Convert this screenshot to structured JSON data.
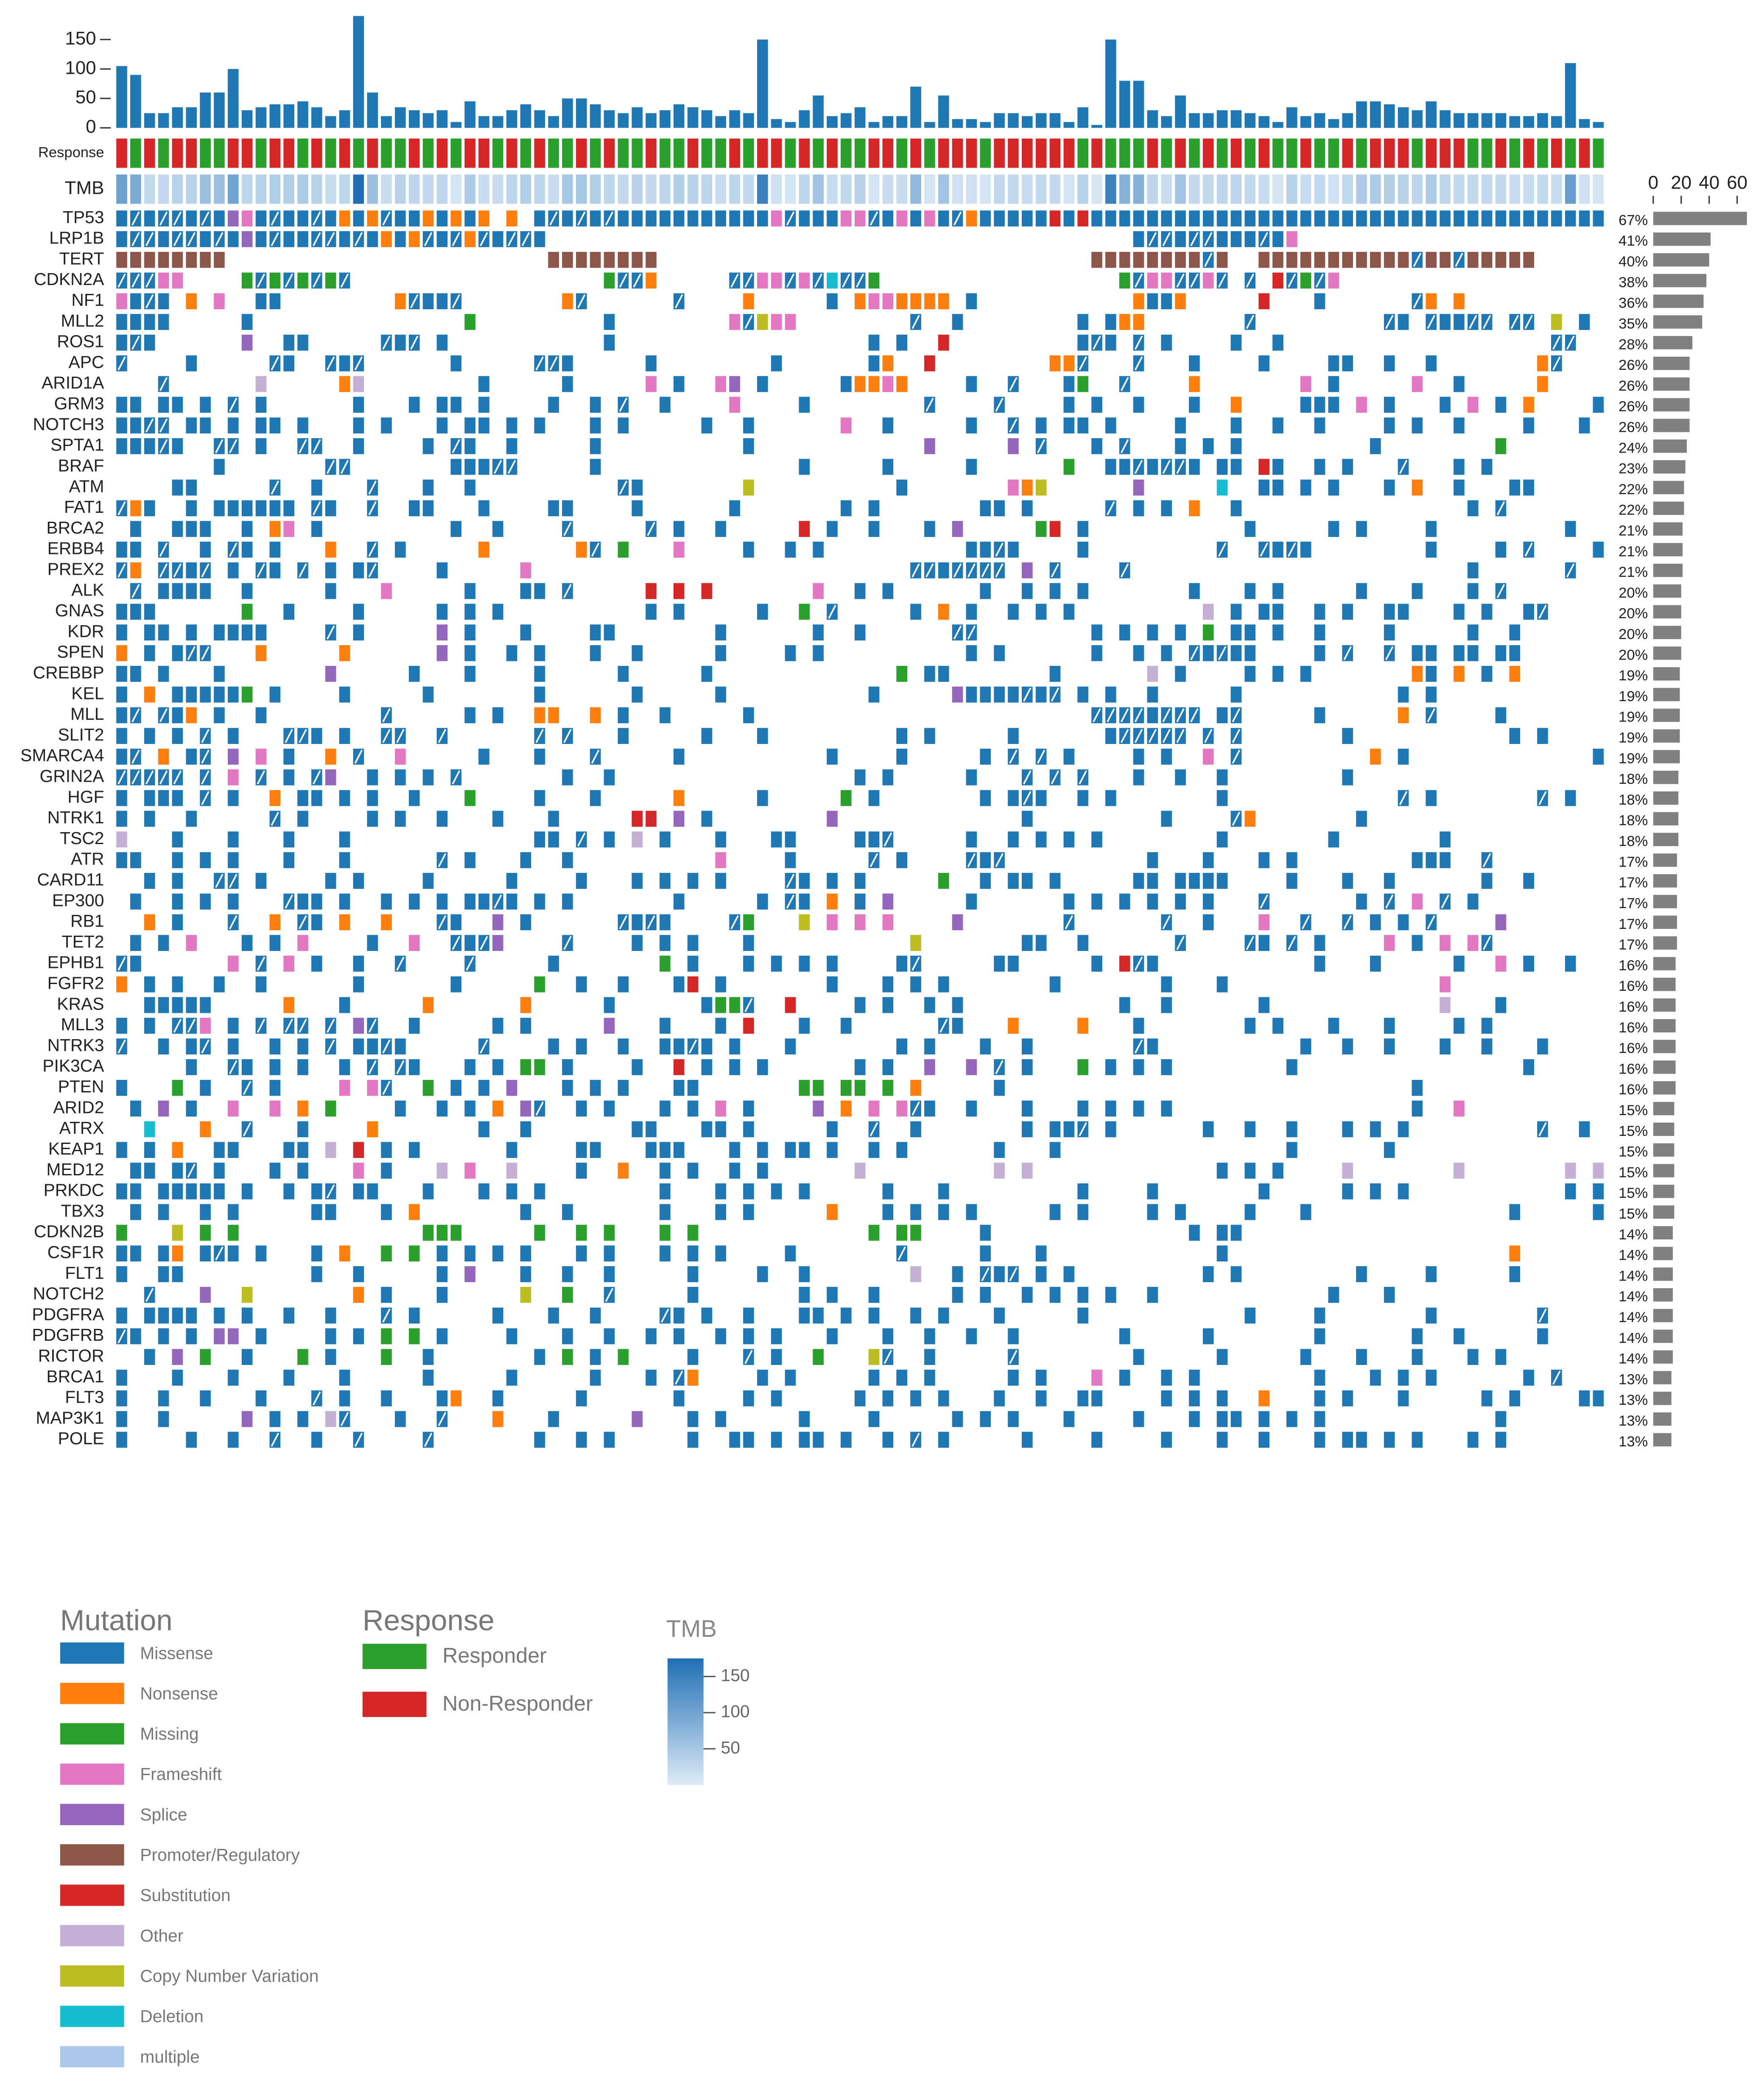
{
  "chart_data": {
    "type": "oncoprint",
    "tmb": {
      "ylim": [
        0,
        190
      ],
      "yticks": [
        0,
        50,
        100,
        150
      ],
      "color": "#1f77b4",
      "values": [
        105,
        90,
        25,
        25,
        35,
        35,
        60,
        60,
        100,
        30,
        35,
        40,
        40,
        45,
        35,
        20,
        30,
        190,
        60,
        20,
        35,
        30,
        25,
        30,
        10,
        45,
        20,
        20,
        30,
        40,
        30,
        20,
        50,
        50,
        40,
        30,
        25,
        35,
        25,
        30,
        40,
        35,
        30,
        20,
        30,
        25,
        150,
        15,
        10,
        30,
        55,
        20,
        25,
        35,
        10,
        20,
        20,
        70,
        10,
        55,
        15,
        15,
        10,
        25,
        25,
        20,
        25,
        25,
        10,
        35,
        5,
        150,
        80,
        80,
        30,
        20,
        55,
        25,
        25,
        30,
        30,
        25,
        20,
        10,
        35,
        20,
        25,
        15,
        25,
        45,
        45,
        40,
        35,
        30,
        45,
        30,
        25,
        25,
        25,
        25,
        20,
        20,
        25,
        20,
        110,
        15,
        10
      ]
    },
    "response_label": "Response",
    "tmb_label": "TMB",
    "response": [
      1,
      0,
      1,
      0,
      1,
      1,
      0,
      0,
      1,
      1,
      0,
      1,
      1,
      0,
      1,
      0,
      1,
      0,
      1,
      0,
      0,
      1,
      0,
      1,
      0,
      1,
      1,
      0,
      1,
      0,
      1,
      0,
      0,
      1,
      0,
      1,
      0,
      0,
      1,
      0,
      0,
      1,
      0,
      0,
      1,
      0,
      1,
      1,
      0,
      1,
      0,
      1,
      0,
      0,
      1,
      1,
      0,
      1,
      0,
      1,
      1,
      1,
      0,
      1,
      1,
      1,
      1,
      1,
      1,
      0,
      1,
      0,
      0,
      0,
      1,
      0,
      1,
      0,
      1,
      0,
      1,
      0,
      1,
      0,
      0,
      1,
      0,
      0,
      1,
      0,
      1,
      1,
      1,
      0,
      1,
      1,
      1,
      0,
      0,
      1,
      0,
      1,
      0,
      1,
      0,
      1,
      0
    ],
    "genes": [
      "TP53",
      "LRP1B",
      "TERT",
      "CDKN2A",
      "NF1",
      "MLL2",
      "ROS1",
      "APC",
      "ARID1A",
      "GRM3",
      "NOTCH3",
      "SPTA1",
      "BRAF",
      "ATM",
      "FAT1",
      "BRCA2",
      "ERBB4",
      "PREX2",
      "ALK",
      "GNAS",
      "KDR",
      "SPEN",
      "CREBBP",
      "KEL",
      "MLL",
      "SLIT2",
      "SMARCA4",
      "GRIN2A",
      "HGF",
      "NTRK1",
      "TSC2",
      "ATR",
      "CARD11",
      "EP300",
      "RB1",
      "TET2",
      "EPHB1",
      "FGFR2",
      "KRAS",
      "MLL3",
      "NTRK3",
      "PIK3CA",
      "PTEN",
      "ARID2",
      "ATRX",
      "KEAP1",
      "MED12",
      "PRKDC",
      "TBX3",
      "CDKN2B",
      "CSF1R",
      "FLT1",
      "NOTCH2",
      "PDGFRA",
      "PDGFRB",
      "RICTOR",
      "BRCA1",
      "FLT3",
      "MAP3K1",
      "POLE"
    ],
    "matrix": [
      "0a0aa0a0430a00a0101a0010101-1-0a0a0a000000000003a00033a03030a1000006060000000000000000000000000000000000000000",
      "0aa0aa0a040a00aa0a0101a0a1a0aa0------------------------------------------0aa0aa000a03----------------------",
      "55555555-----------------------55555555-------------------------------55555555a5--55555555555a55a55555------",
      "aaa33----2a2a2a2a------------------2aa1-----aa33a3a9aa2-----------------2a33aa3a-a-6a2a3---------------------",
      "30a0-1-3--00--------1a00a-------1a------a----1-----0-1331111-0-----------1001-----6---0------a1-1------------",
      "0000-----0---------------2---------0--------3a833--------a--0--------0-011-------a---------a0-a00aa-aa-8-0----",
      "0a0------4--00-----a0a-0-----------0------------------0-0--6---------0a0-a-0----0--0-------------------aa----",
      "a----0-----a0--a0a------0-----aa0-----0--------0------01--6--------11a---a---0----0----00--0--0-------1a-----",
      "---a------7-----17--------0-----0-----3-0--34-0-----01131----0--a---02--a----1-------3-0-----3--0-----1------",
      "00-00-0-a-0------0---0-00-0----0--0-a--0----3----0--------a----a----0-0--0---0--1----000-3-0---0-3-0-1----0--",
      "00aa-00-0-00-0---0-0---0-00-0-0---0-0-----0--0------3--0-----0--a-0-00-0----0---0--0--0----0-0--0----0---0-0-",
      "000a0--aa-0--aa--0----0-a0--0-----0----------0------------4-----4-a---0-a---0-0-0---------0--------2--------",
      "-------0-------aa-------000aa-----0--------------0-----0-----0------2--00a0aa0-00-60--0-0---a---0-0----------",
      "----00-----a--0---a---0--0----------a0-------8----------0-------318------4-----9--00-0-0---0-1--0---00-------",
      "a10--0-000000-a0--a--00---0----00----0------0-------0-0-------00-0-----a-0-0-1--0----------------0-a-------",
      "-0--000--0-13-0---------0--0----a-----a-0--0-----6-0--0---0-4-----26-0-----------0-----0-0----0---------0---",
      "00-a--0-a0-0---1--a-0-----1------1a-2---3----0--0-0----------00a0----0---------a--a0a0--------0----0-a----0-",
      "a1-aa0a-0-a0-a-0-0a----0-----3---------------------------aa0aaaa-4-a----a------------------------0------a--",
      "-a-0000--0-----0---3-----0---00-a-----6-6-6-------3--0-0------0--0-0-0-------0---0-0-----0---0---0-a---------",
      "000------2--0----0-----0-0-0----------0-0-----0--2-a-----0-1-0--0-0-0---------7-0-00--0-0--00---0-0--0a----",
      "0-00-0-0000----a-0-----4-0---0----00-------0------0--0------aa--------0-0-0-0-2-00-0--0----0-----0--0--------",
      "1-0-0aa---1-----1------4-0--0-0---0--0-----0----0-0----------0-0------0--0-0-a0a00----0-a--a-00-00-00---------",
      "00-0---0-------4-----0---0----0-----0-----0-------------2-00-------0------7-0----0-0-0-------10-1-0-1---------",
      "0-1-000002-0----0-----0-------0------0-----0----------0-----40000a0a-0-0--0-----0-----------0-0---------------",
      "0a-a01-0--0--------a-----0-0--11--1-0--0-----0------------------------aaaa0aaa-0a-----0-----1-a----0---------",
      "0-0-0-a-0---aa0-0--aa--a------a-a---0-----0---0---------0-0-----0------0aaaaa-a-a-------0-----------0-0------",
      "0a-1-0a-4-3-0--1-a--3-----0---0---a-----0----------0----0-----0-a-a-0----0-0--3-a---------1-0-------------0-",
      "aaaaa-a-3-a-0-a4--0-0-0-a-------0--0-----------------0-0-----0---a-a-a---0--0--0--------0-------------------",
      "0-000-a-0--1-00-0-0--0---2----0---0-----1-----0-----2-0-------0-0a0--0-0-------0------------a-0-------a-0---",
      "0-0--0-----a-0----0-0--0---0---0-----66-4-0--------4-------------0---------0----a1-------0-------------------",
      "7---0---0---0---0-------------00-a-0-7-0---0---00----00a-----0--0-0-0-0--------0-------0-------0-------------",
      "00--0-0-0---0---0------a-0---0--0----------3----0-----a-0----a0a----------0---0---0-0--------000--a---------a-",
      "--0-0--aa-0----0-0----0-----0----0---0-0-0-0----a0-0-0-----2--0-00-0-----00-0000----0---0--0------0--0-------",
      "-0--0-0-0---a00-0--0-0-0-00a0-0-0-------0-----0-a0-1-0-4-----0------0-0-0-0-0-0---a------0-a-3-a-0----------",
      "--1-0---a--1-a0-1--1---a0--4-0------a0a0----a2---8-3-3-3----4-------a------a--0---3--a--a-0-0-a----4--------",
      "-0-0-3---0-0-3----0--3--a0a4----a----0-0-0---0-----------8-------00--0------a----a0-a-0----3-0-3-3a--------",
      "a0------3-a-3-0--0--a----a-----0-------2-0---0-0-0-0----0a-----00-----0-6a0-----------0---0-----0--3-0--0--",
      "1-0-0--0--0------0------0-----2--0--0---06-0-------0---0-0-0-------0-------0---0---------------3-------------",
      "--00000-----1---0-----1------1-----0------022a--6----0-0--0-0-----------0--0------0------------7---0--------",
      "0-0-aa3-0-a-aa-a-4a--0-----0-0-----4---0---0-6---0--0------a0---1----1---0-------0-0---0---0----0-0---------",
      "a--0-0a-0--0-0-a-00a0-----a----0-0--0--00a0-0---0-------0-0---0--0-------a0----------0--0--0---0--0---0---",
      "-----0--a0-0-0--0-a-a0---0-0-22-0----0--6-0-0-0------0-0--4--4-a-0---2-0-0-0--------0----------------0------",
      "0---2-0--a-0----3-3a--2-0-0-4---0-0-0---00-------22-22-2-1-----0-----------------------------0--------------",
      "-0-4-0--3--3-1-2----0--0-0-1-4a--0-0---0-0-3-0----4-1-3-3a0--0---0---0-0-0-0-----------------0--3-----------",
      "--9---1--a---0----1-------0--0-------00---00-0-----0--a--0-------0-00a-0------0--0--0---0-0-0---------a--0-",
      "0-0-1--00---00-7-6-0-0------0----00---000---0-0-00-0--0-0------0---0----------------0------0----------------",
      "-00-0a-0---0-0---3-0---7-3--7----0--1--0-0--0-0------7---------7-7-------------0-0-0----7-------7-------7-7",
      "00-00000-0--0-0a-00---0---0-0-0--------0---0-0-0-0-----0---0---------0----0-------0-----0-0-0-----------0-0-",
      "-0-0--0-0-----00---0-1-------0--0------0---0-0-----1---0-0-0-0-----0-0----0-0----0---0--------------0-----0",
      "2---8-2-2-------------222-----2--2-2---2-2------------2-22----0--------------0-00--------------------------",
      "00-01-0a0-0---0-1--2-2-0-0-0-0---0-0---0-0-0----0-------a-----0---0------------0--------------------1------",
      "0--00---------0--0-----0-4---0--0--0-----0----0--0-------7--0-a0a-0-0---------0-0--------0----0-----0------",
      "--a---4--8-------1-0---0-----8--2--a-----0-------0-0--0-----0-0--0-0-0-0--0------------0---0--------------",
      "0-0000-0-0--0--0---a-0-----0---0--0----a0-0--0---00-0-0--0-0---0-----0-----------0----0-------0-------a-----",
      "a0-0-0-44-0----0-0-2-2-0----0---0--0--0-0--0-0-0---0---0--0--0--0-------0-----0-------0------0--0-----0------",
      "--0-4-2--0---2-0---2--0-------0-2-0-2----0---a-0--2---8a--0-----a--------0-----0-----0---0---0---0-0--------",
      "0---0---0---0---0-----0-----0-----0---0-a1----0-0-----0-0-0-----0-0---3-0--0-0--------0---0-0-0------0-a----",
      "0--0--0---0---a-0--0---01--0-----0------0----0-0-----0-0-0-0---0--0--00----0-0-0--1---0-0---0-----0-0----00",
      "0--0-----4-0-0-7a---0--a---1---0-----4---0-0-----0----0-----0-0-0---0----0---0-00-0-0-0------------0------",
      "0----0--0--a--0--a----a-------0--0-0-----0--00-0-00-0--0-a-0-----0----0----0---0--0---0-00-0-0---0-0--------"
    ],
    "frequency": {
      "xlim": [
        0,
        70
      ],
      "xticks": [
        0,
        20,
        40,
        60
      ],
      "color": "#808080",
      "values": [
        67,
        41,
        40,
        38,
        36,
        35,
        28,
        26,
        26,
        26,
        26,
        24,
        23,
        22,
        22,
        21,
        21,
        21,
        20,
        20,
        20,
        20,
        19,
        19,
        19,
        19,
        19,
        18,
        18,
        18,
        18,
        17,
        17,
        17,
        17,
        17,
        16,
        16,
        16,
        16,
        16,
        16,
        16,
        15,
        15,
        15,
        15,
        15,
        15,
        14,
        14,
        14,
        14,
        14,
        14,
        14,
        13,
        13,
        13,
        13
      ],
      "value_labels": [
        "67%",
        "41%",
        "40%",
        "38%",
        "36%",
        "35%",
        "28%",
        "26%",
        "26%",
        "26%",
        "26%",
        "24%",
        "23%",
        "22%",
        "22%",
        "21%",
        "21%",
        "21%",
        "20%",
        "20%",
        "20%",
        "20%",
        "19%",
        "19%",
        "19%",
        "19%",
        "19%",
        "18%",
        "18%",
        "18%",
        "18%",
        "17%",
        "17%",
        "17%",
        "17%",
        "17%",
        "16%",
        "16%",
        "16%",
        "16%",
        "16%",
        "16%",
        "16%",
        "15%",
        "15%",
        "15%",
        "15%",
        "15%",
        "15%",
        "14%",
        "14%",
        "14%",
        "14%",
        "14%",
        "14%",
        "14%",
        "13%",
        "13%",
        "13%",
        "13%"
      ]
    },
    "legend_mutation": {
      "title": "Mutation",
      "items": [
        {
          "name": "Missense",
          "color": "#1f77b4"
        },
        {
          "name": "Nonsense",
          "color": "#ff7f0e"
        },
        {
          "name": "Missing",
          "color": "#2ca02c"
        },
        {
          "name": "Frameshift",
          "color": "#e377c2"
        },
        {
          "name": "Splice",
          "color": "#9467bd"
        },
        {
          "name": "Promoter/Regulatory",
          "color": "#8c564b"
        },
        {
          "name": "Substitution",
          "color": "#d62728"
        },
        {
          "name": "Other",
          "color": "#c5b0d5"
        },
        {
          "name": "Copy Number Variation",
          "color": "#bcbd22"
        },
        {
          "name": "Deletion",
          "color": "#17becf"
        },
        {
          "name": "multiple",
          "color": "#aec7e8"
        }
      ]
    },
    "legend_response": {
      "title": "Response",
      "items": [
        {
          "name": "Responder",
          "color": "#2ca02c"
        },
        {
          "name": "Non-Responder",
          "color": "#d62728"
        }
      ]
    },
    "legend_tmb": {
      "title": "TMB",
      "lim": [
        0,
        175
      ],
      "ticks": [
        50,
        100,
        150
      ],
      "colors": [
        "#deebf7",
        "#1f6fb4"
      ]
    }
  }
}
